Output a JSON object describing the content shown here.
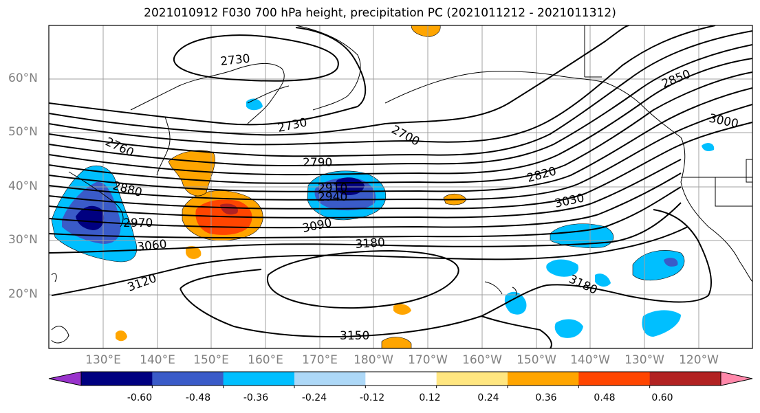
{
  "title": "2021010912 F030 700 hPa height, precipitation PC (2021011212 - 2021011312)",
  "lat_labels": [
    "60°N",
    "50°N",
    "40°N",
    "30°N",
    "20°N"
  ],
  "lon_labels": [
    "130°E",
    "140°E",
    "150°E",
    "160°E",
    "170°E",
    "180°W",
    "170°W",
    "160°W",
    "150°W",
    "140°W",
    "130°W",
    "120°W"
  ],
  "contour_labels": [
    "2730",
    "2730",
    "2700",
    "2760",
    "2790",
    "2820",
    "2850",
    "3000",
    "2880",
    "2910",
    "2940",
    "2970",
    "3030",
    "3060",
    "3090",
    "3120",
    "3180",
    "3180",
    "3150"
  ],
  "colorbar": {
    "colors": [
      "#9933cc",
      "#000080",
      "#3a5bc8",
      "#00bfff",
      "#add8f7",
      "#ffffff",
      "#ffe680",
      "#ffa500",
      "#ff4500",
      "#b22222",
      "#ff88aa"
    ],
    "tick_labels": [
      "-0.60",
      "-0.48",
      "-0.36",
      "-0.24",
      "-0.12",
      "0.12",
      "0.24",
      "0.36",
      "0.48",
      "0.60"
    ]
  }
}
